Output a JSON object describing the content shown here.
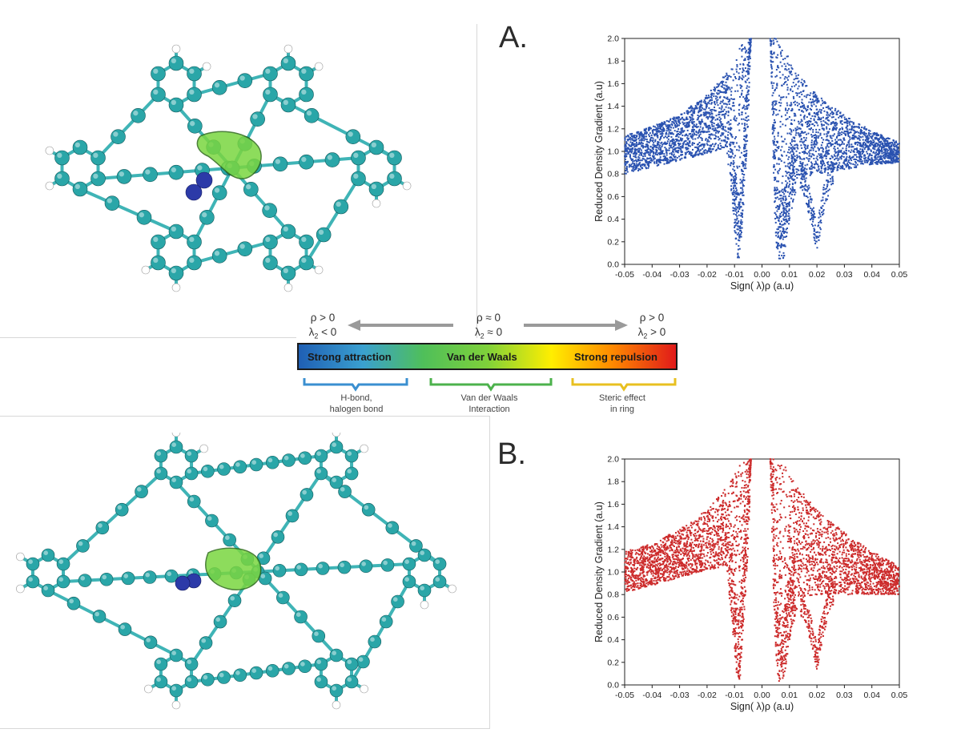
{
  "panels": [
    {
      "label": "A."
    },
    {
      "label": "B."
    }
  ],
  "conditions": {
    "left": {
      "line1": "ρ > 0",
      "line2_base": "λ",
      "line2_sub": "2",
      "line2_rest": " < 0"
    },
    "middle": {
      "line1": "ρ ≈ 0",
      "line2_base": "λ",
      "line2_sub": "2",
      "line2_rest": " ≈ 0"
    },
    "right": {
      "line1": "ρ > 0",
      "line2_base": "λ",
      "line2_sub": "2",
      "line2_rest": " > 0"
    }
  },
  "colorbar": {
    "segments": [
      "Strong attraction",
      "Van der Waals",
      "Strong repulsion"
    ],
    "gradient_colors": [
      "#1f5fb4",
      "#3aa0d0",
      "#4fbf5a",
      "#7fd13a",
      "#ffee00",
      "#ff8a00",
      "#e01a1a"
    ]
  },
  "bracket_legend": [
    {
      "line1": "H-bond,",
      "line2": "halogen bond",
      "color": "#3a8fd0"
    },
    {
      "line1": "Van der Waals",
      "line2": "Interaction",
      "color": "#4cb24c"
    },
    {
      "line1": "Steric effect",
      "line2": "in ring",
      "color": "#e8c020"
    }
  ],
  "colors": {
    "blue_series": "#2a52b0",
    "red_series": "#cc2a2a",
    "atom_carbon": "#2aa6a8",
    "atom_hydrogen": "#ffffff",
    "atom_nitrogen": "#2c3aa8",
    "isosurface": "#7ad640"
  },
  "chart_data": [
    {
      "type": "scatter",
      "panel": "A.",
      "xlabel": "Sign( λ)ρ (a.u)",
      "ylabel": "Reduced Density Gradient (a.u)",
      "xlim": [
        -0.05,
        0.05
      ],
      "ylim": [
        0.0,
        2.0
      ],
      "xticks": [
        "-0.05",
        "-0.04",
        "-0.03",
        "-0.02",
        "-0.01",
        "0.00",
        "0.01",
        "0.02",
        "0.03",
        "0.04",
        "0.05"
      ],
      "yticks": [
        "0.0",
        "0.2",
        "0.4",
        "0.6",
        "0.8",
        "1.0",
        "1.2",
        "1.4",
        "1.6",
        "1.8",
        "2.0"
      ],
      "color": "#2a52b0",
      "envelope": {
        "upper_left": [
          [
            -0.05,
            1.14
          ],
          [
            -0.04,
            1.22
          ],
          [
            -0.03,
            1.33
          ],
          [
            -0.02,
            1.5
          ],
          [
            -0.012,
            1.72
          ],
          [
            -0.008,
            1.92
          ],
          [
            -0.006,
            2.0
          ]
        ],
        "lower_left": [
          [
            -0.05,
            0.8
          ],
          [
            -0.04,
            0.86
          ],
          [
            -0.03,
            0.92
          ],
          [
            -0.02,
            0.98
          ],
          [
            -0.013,
            1.02
          ]
        ],
        "spike_left": [
          [
            -0.013,
            1.0
          ],
          [
            -0.011,
            0.6
          ],
          [
            -0.01,
            0.3
          ],
          [
            -0.009,
            0.05
          ],
          [
            -0.008,
            0.05
          ],
          [
            -0.007,
            0.4
          ],
          [
            -0.005,
            1.2
          ],
          [
            -0.004,
            2.0
          ]
        ],
        "gap": [
          -0.003,
          0.003
        ],
        "spike_right": [
          [
            0.003,
            2.0
          ],
          [
            0.004,
            1.0
          ],
          [
            0.005,
            0.2
          ],
          [
            0.006,
            0.05
          ],
          [
            0.008,
            0.05
          ],
          [
            0.01,
            0.4
          ],
          [
            0.013,
            0.7
          ]
        ],
        "upper_right": [
          [
            0.006,
            2.0
          ],
          [
            0.008,
            1.92
          ],
          [
            0.012,
            1.72
          ],
          [
            0.02,
            1.5
          ],
          [
            0.03,
            1.32
          ],
          [
            0.04,
            1.18
          ],
          [
            0.05,
            1.08
          ]
        ],
        "lower_right": [
          [
            0.013,
            0.75
          ],
          [
            0.02,
            0.8
          ],
          [
            0.03,
            0.84
          ],
          [
            0.04,
            0.88
          ],
          [
            0.05,
            0.9
          ]
        ],
        "tail_right": [
          [
            0.015,
            0.65
          ],
          [
            0.018,
            0.35
          ],
          [
            0.02,
            0.1
          ],
          [
            0.022,
            0.4
          ],
          [
            0.025,
            0.7
          ]
        ]
      }
    },
    {
      "type": "scatter",
      "panel": "B.",
      "xlabel": "Sign( λ)ρ (a.u)",
      "ylabel": "Reduced Density Gradient (a.u)",
      "xlim": [
        -0.05,
        0.05
      ],
      "ylim": [
        0.0,
        2.0
      ],
      "xticks": [
        "-0.05",
        "-0.04",
        "-0.03",
        "-0.02",
        "-0.01",
        "0.00",
        "0.01",
        "0.02",
        "0.03",
        "0.04",
        "0.05"
      ],
      "yticks": [
        "0.0",
        "0.2",
        "0.4",
        "0.6",
        "0.8",
        "1.0",
        "1.2",
        "1.4",
        "1.6",
        "1.8",
        "2.0"
      ],
      "color": "#cc2a2a",
      "envelope": {
        "upper_left": [
          [
            -0.05,
            1.18
          ],
          [
            -0.04,
            1.25
          ],
          [
            -0.03,
            1.38
          ],
          [
            -0.02,
            1.55
          ],
          [
            -0.012,
            1.78
          ],
          [
            -0.008,
            1.95
          ],
          [
            -0.006,
            2.0
          ]
        ],
        "lower_left": [
          [
            -0.05,
            0.82
          ],
          [
            -0.04,
            0.88
          ],
          [
            -0.03,
            0.95
          ],
          [
            -0.02,
            1.02
          ],
          [
            -0.013,
            1.05
          ]
        ],
        "spike_left": [
          [
            -0.013,
            1.0
          ],
          [
            -0.011,
            0.6
          ],
          [
            -0.01,
            0.3
          ],
          [
            -0.009,
            0.03
          ],
          [
            -0.008,
            0.05
          ],
          [
            -0.007,
            0.4
          ],
          [
            -0.005,
            1.2
          ],
          [
            -0.004,
            2.0
          ]
        ],
        "gap": [
          -0.003,
          0.003
        ],
        "spike_right": [
          [
            0.003,
            2.0
          ],
          [
            0.004,
            1.0
          ],
          [
            0.005,
            0.25
          ],
          [
            0.006,
            0.03
          ],
          [
            0.008,
            0.05
          ],
          [
            0.01,
            0.4
          ],
          [
            0.013,
            0.7
          ]
        ],
        "upper_right": [
          [
            0.006,
            2.0
          ],
          [
            0.008,
            1.95
          ],
          [
            0.012,
            1.78
          ],
          [
            0.02,
            1.55
          ],
          [
            0.03,
            1.35
          ],
          [
            0.04,
            1.18
          ],
          [
            0.05,
            1.06
          ]
        ],
        "lower_right": [
          [
            0.013,
            0.78
          ],
          [
            0.02,
            0.8
          ],
          [
            0.03,
            0.8
          ],
          [
            0.04,
            0.8
          ],
          [
            0.05,
            0.8
          ]
        ],
        "tail_right": [
          [
            0.015,
            0.6
          ],
          [
            0.018,
            0.35
          ],
          [
            0.02,
            0.12
          ],
          [
            0.022,
            0.4
          ],
          [
            0.025,
            0.7
          ]
        ]
      }
    }
  ]
}
